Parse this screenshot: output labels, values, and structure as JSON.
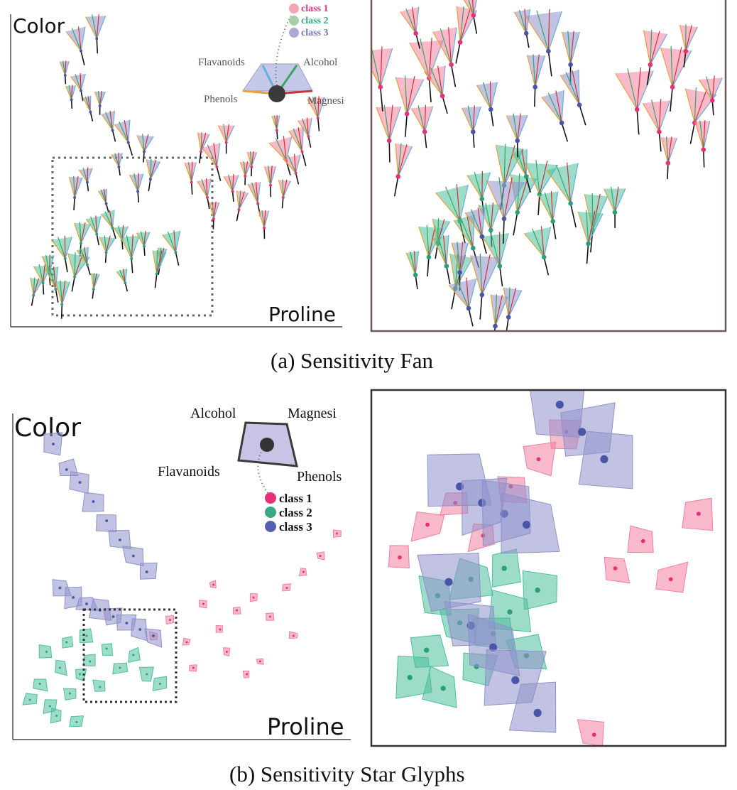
{
  "panel_a": {
    "caption": "(a) Sensitivity Fan",
    "x_label": "Proline",
    "y_label": "Color",
    "glyph_labels": {
      "top_left": "Flavanoids",
      "top_right": "Alcohol",
      "bottom_left": "Phenols",
      "bottom_right": "Magnesi"
    },
    "legend": [
      {
        "label": "class 1",
        "color": "#e0367a"
      },
      {
        "label": "class 2",
        "color": "#3aa887"
      },
      {
        "label": "class 3",
        "color": "#6f73c0"
      }
    ]
  },
  "panel_b": {
    "caption": "(b) Sensitivity Star Glyphs",
    "x_label": "Proline",
    "y_label": "Color",
    "glyph_labels": {
      "top_left": "Alcohol",
      "top_right": "Magnesi",
      "bottom_left": "Flavanoids",
      "bottom_right": "Phenols"
    },
    "legend": [
      {
        "label": "class 1",
        "color": "#e8307a"
      },
      {
        "label": "class 2",
        "color": "#3aa887"
      },
      {
        "label": "class 3",
        "color": "#5560b0"
      }
    ]
  },
  "colors": {
    "class1": "#f27fa0",
    "class2": "#4cc09a",
    "class3": "#8f91cc",
    "frame": "#6b5757",
    "axis": "#222222"
  },
  "chart_data": [
    {
      "type": "scatter",
      "title": "(a) Sensitivity Fan",
      "xlabel": "Proline",
      "ylabel": "Color",
      "glyph": "sensitivity fan",
      "series": [
        {
          "name": "class 1",
          "x": [
            0.55,
            0.6,
            0.63,
            0.68,
            0.72,
            0.76,
            0.8,
            0.85,
            0.88,
            0.92,
            0.62,
            0.7,
            0.78,
            0.84,
            0.9,
            0.58,
            0.66,
            0.74,
            0.82,
            0.95
          ],
          "y": [
            0.45,
            0.4,
            0.5,
            0.42,
            0.47,
            0.38,
            0.44,
            0.52,
            0.48,
            0.6,
            0.33,
            0.36,
            0.3,
            0.4,
            0.55,
            0.55,
            0.58,
            0.5,
            0.62,
            0.66
          ]
        },
        {
          "name": "class 2",
          "x": [
            0.05,
            0.08,
            0.1,
            0.12,
            0.15,
            0.18,
            0.2,
            0.22,
            0.25,
            0.28,
            0.3,
            0.33,
            0.36,
            0.4,
            0.45,
            0.5,
            0.14,
            0.24,
            0.34,
            0.44
          ],
          "y": [
            0.08,
            0.12,
            0.15,
            0.1,
            0.2,
            0.14,
            0.25,
            0.18,
            0.28,
            0.22,
            0.3,
            0.26,
            0.2,
            0.24,
            0.18,
            0.22,
            0.05,
            0.1,
            0.12,
            0.15
          ]
        },
        {
          "name": "class 3",
          "x": [
            0.15,
            0.17,
            0.2,
            0.23,
            0.26,
            0.3,
            0.35,
            0.4,
            0.18,
            0.22,
            0.28,
            0.32,
            0.38,
            0.42,
            0.2,
            0.25
          ],
          "y": [
            0.8,
            0.72,
            0.75,
            0.68,
            0.7,
            0.62,
            0.58,
            0.55,
            0.4,
            0.45,
            0.38,
            0.5,
            0.42,
            0.46,
            0.88,
            0.92
          ]
        }
      ]
    },
    {
      "type": "scatter",
      "title": "(b) Sensitivity Star Glyphs",
      "xlabel": "Proline",
      "ylabel": "Color",
      "glyph": "star glyph",
      "series": [
        {
          "name": "class 1",
          "x": [
            0.4,
            0.45,
            0.5,
            0.55,
            0.6,
            0.65,
            0.7,
            0.75,
            0.8,
            0.85,
            0.9,
            0.95,
            0.52,
            0.62,
            0.72,
            0.82,
            0.58,
            0.68
          ],
          "y": [
            0.3,
            0.35,
            0.28,
            0.4,
            0.32,
            0.38,
            0.42,
            0.36,
            0.45,
            0.5,
            0.55,
            0.62,
            0.2,
            0.25,
            0.22,
            0.3,
            0.46,
            0.18
          ]
        },
        {
          "name": "class 2",
          "x": [
            0.03,
            0.06,
            0.09,
            0.12,
            0.15,
            0.18,
            0.21,
            0.24,
            0.08,
            0.14,
            0.2,
            0.26,
            0.3,
            0.34,
            0.38,
            0.42,
            0.11,
            0.17
          ],
          "y": [
            0.1,
            0.15,
            0.08,
            0.2,
            0.12,
            0.18,
            0.22,
            0.14,
            0.25,
            0.28,
            0.3,
            0.26,
            0.2,
            0.24,
            0.18,
            0.15,
            0.05,
            0.03
          ]
        },
        {
          "name": "class 3",
          "x": [
            0.1,
            0.14,
            0.18,
            0.22,
            0.26,
            0.3,
            0.34,
            0.38,
            0.12,
            0.16,
            0.2,
            0.24,
            0.28,
            0.32,
            0.36,
            0.4
          ],
          "y": [
            0.9,
            0.82,
            0.78,
            0.72,
            0.66,
            0.6,
            0.55,
            0.5,
            0.45,
            0.42,
            0.4,
            0.38,
            0.36,
            0.34,
            0.32,
            0.3
          ]
        }
      ]
    }
  ]
}
